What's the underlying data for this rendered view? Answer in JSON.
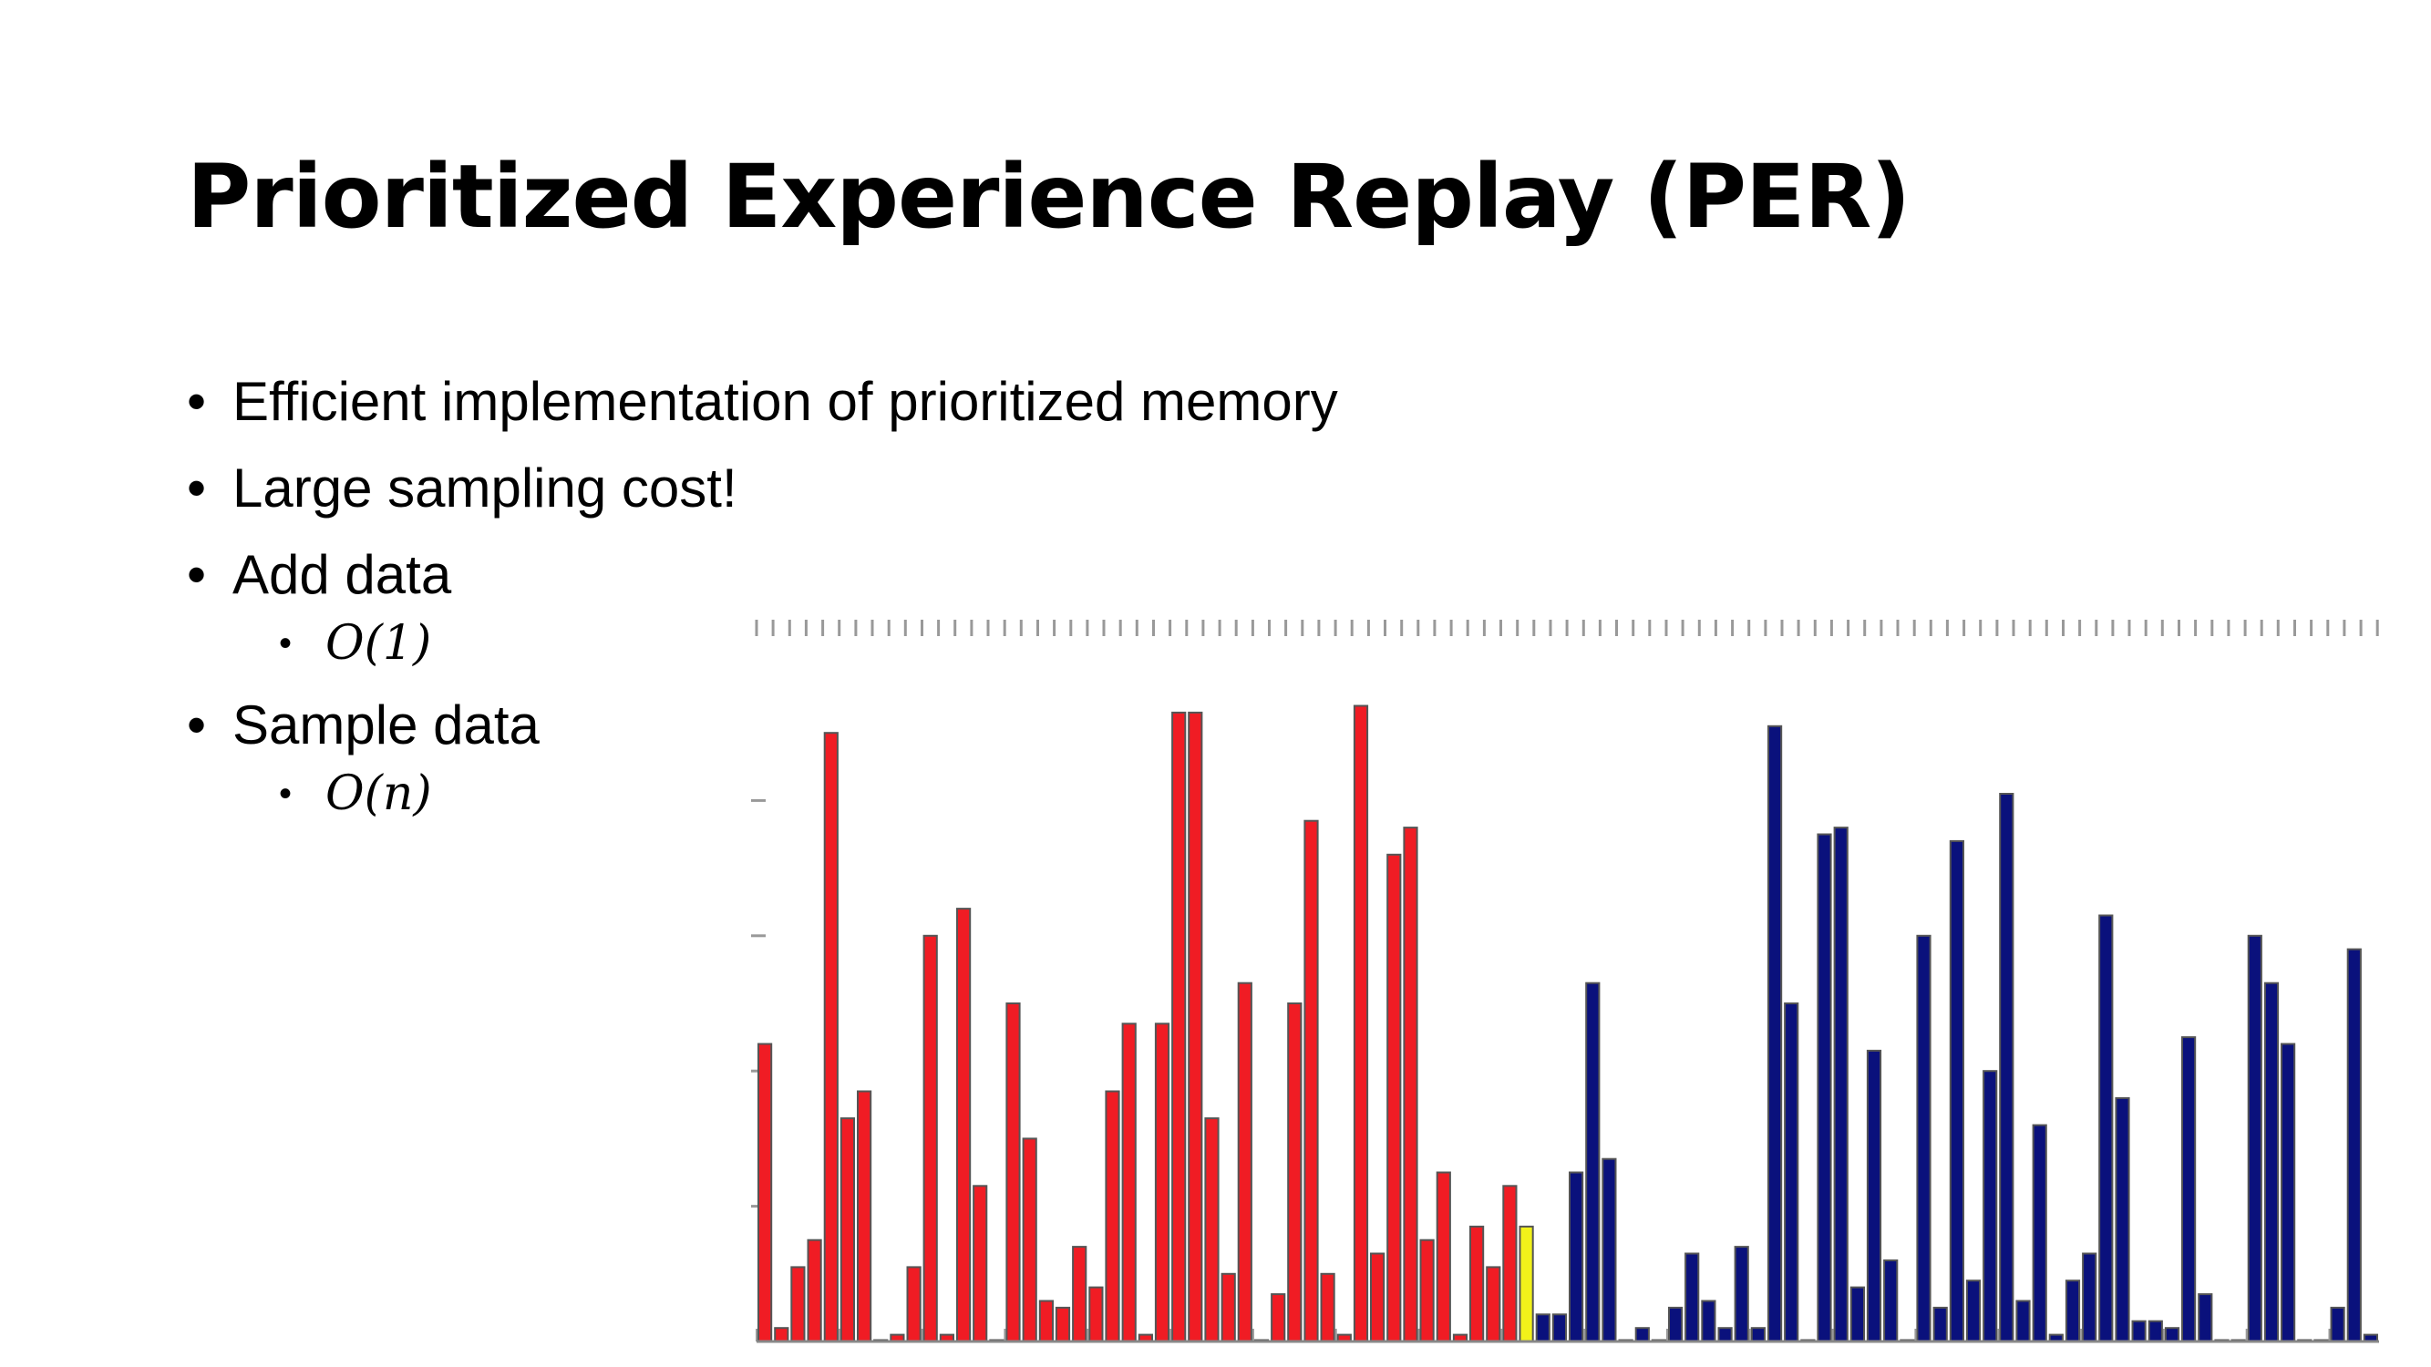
{
  "slide": {
    "title": "Prioritized Experience Replay (PER)",
    "bullets": [
      {
        "text": "Efficient implementation of prioritized memory",
        "level": 1
      },
      {
        "text": "Large sampling cost!",
        "level": 1
      },
      {
        "text": "Add data",
        "level": 1
      },
      {
        "text": "O(1)",
        "level": 2
      },
      {
        "text": "Sample data",
        "level": 1
      },
      {
        "text": "O(n)",
        "level": 2
      }
    ]
  },
  "chart_data": {
    "type": "bar",
    "title": "",
    "xlabel": "",
    "ylabel": "",
    "grid": false,
    "colors": {
      "red": "#f01c24",
      "yellow": "#f2f21a",
      "blue": "#0a117c"
    },
    "ylim": [
      0,
      10
    ],
    "values": [
      4.4,
      0.2,
      1.1,
      1.5,
      9.0,
      3.3,
      3.7,
      0.0,
      0.1,
      1.1,
      6.0,
      0.1,
      6.4,
      2.3,
      0.0,
      5.0,
      3.0,
      0.6,
      0.5,
      1.4,
      0.8,
      3.7,
      4.7,
      0.1,
      4.7,
      9.3,
      9.3,
      3.3,
      1.0,
      5.3,
      0.0,
      0.7,
      5.0,
      7.7,
      1.0,
      0.1,
      9.4,
      1.3,
      7.2,
      7.6,
      1.5,
      2.5,
      0.1,
      1.7,
      1.1,
      2.3,
      1.7,
      0.4,
      0.4,
      2.5,
      5.3,
      2.7,
      0.0,
      0.2,
      0.0,
      0.5,
      1.3,
      0.6,
      0.2,
      1.4,
      0.2,
      9.1,
      5.0,
      0.0,
      7.5,
      7.6,
      0.8,
      4.3,
      1.2,
      0.0,
      6.0,
      0.5,
      7.4,
      0.9,
      4.0,
      8.1,
      0.6,
      3.2,
      0.1,
      0.9,
      1.3,
      6.3,
      3.6,
      0.3,
      0.3,
      0.2,
      4.5,
      0.7,
      0.0,
      0.0,
      6.0,
      5.3,
      4.4,
      0.0,
      0.0,
      0.5,
      5.8,
      0.1
    ],
    "series_color_index": {
      "red_until": 45,
      "yellow": 46,
      "blue_from": 47
    }
  }
}
